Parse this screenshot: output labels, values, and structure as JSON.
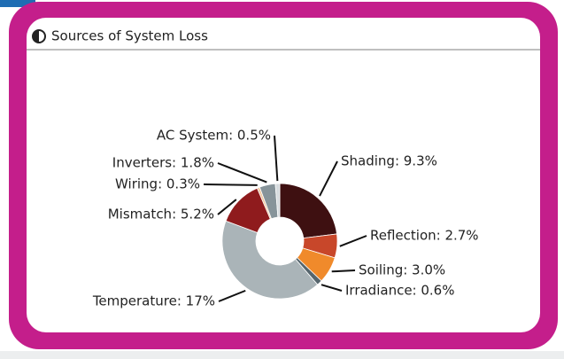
{
  "chart_data": {
    "type": "donut",
    "title": "Sources of System Loss",
    "values": [
      9.3,
      2.7,
      3.0,
      0.6,
      17,
      5.2,
      0.3,
      1.8,
      0.5
    ],
    "value_labels": [
      "Shading: 9.3%",
      "Reflection: 2.7%",
      "Soiling: 3.0%",
      "Irradiance: 0.6%",
      "Temperature: 17%",
      "Mismatch: 5.2%",
      "Wiring: 0.3%",
      "Inverters: 1.8%",
      "AC System: 0.5%"
    ],
    "colors": [
      "#3e1011",
      "#c8472a",
      "#f08a2b",
      "#56656d",
      "#aab4b8",
      "#8f1b1d",
      "#f2c8a0",
      "#87949a",
      "#d6dbde"
    ]
  }
}
